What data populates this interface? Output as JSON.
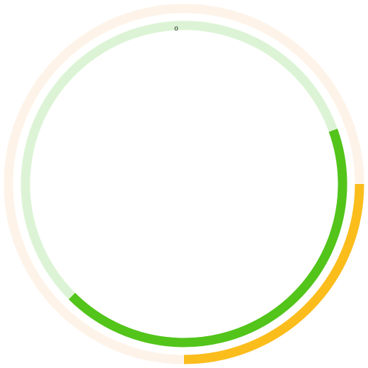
{
  "widget": {
    "label": "o"
  },
  "rings": [
    {
      "name": "outer-ring",
      "start_fraction": 0.25,
      "progress_fraction": 0.25,
      "gap_fraction": 0.08,
      "track_color": "#fdf3e8",
      "progress_color": "#fbbd1c"
    },
    {
      "name": "inner-ring",
      "start_fraction": 0.375,
      "progress_fraction": 0.43,
      "gap_fraction": 0.16,
      "track_color": "#dcf4d5",
      "progress_color": "#52c41a"
    }
  ]
}
